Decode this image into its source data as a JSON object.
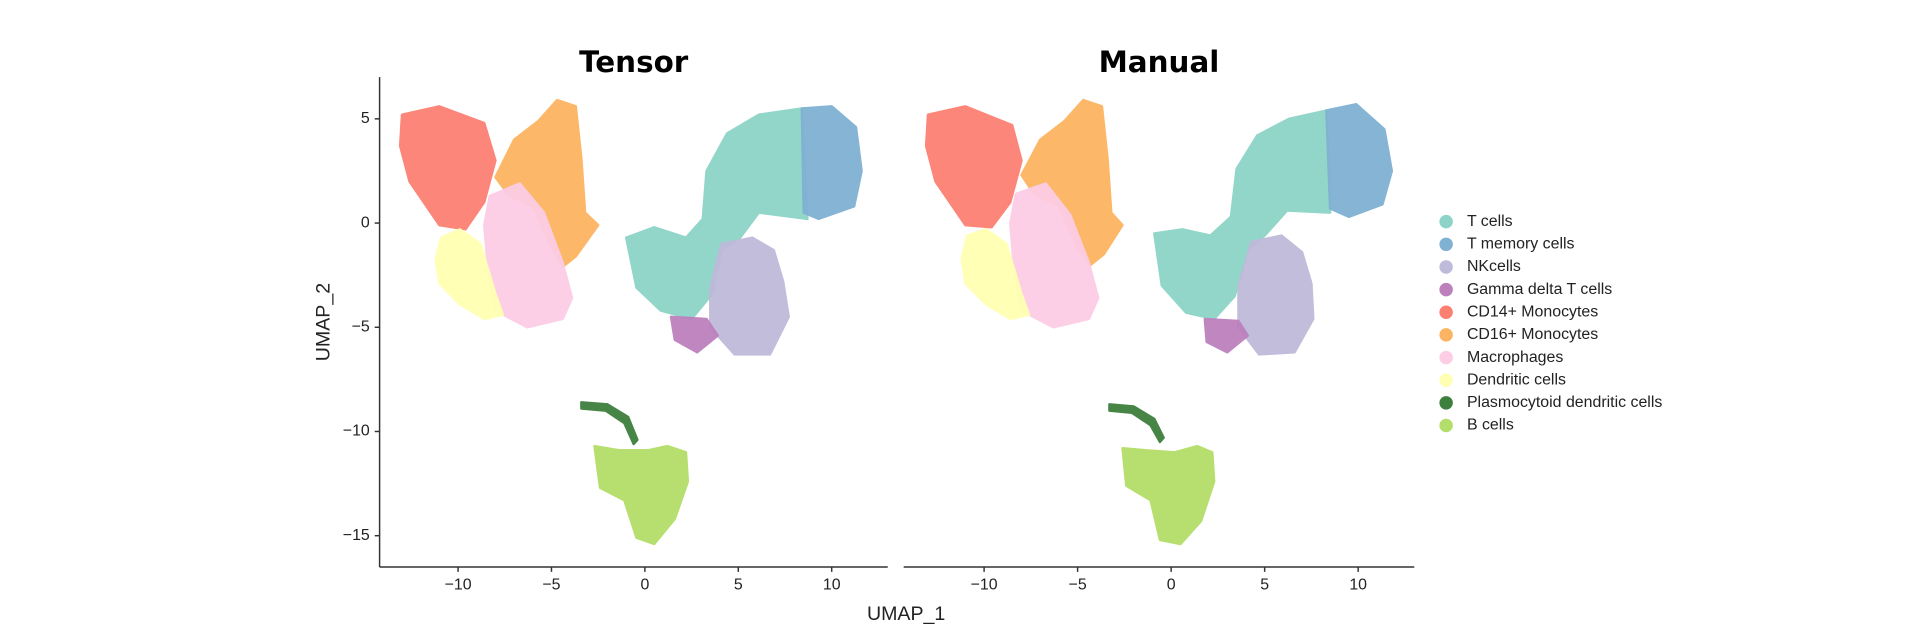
{
  "chart_data": [
    {
      "type": "scatter",
      "title": "Tensor",
      "xlabel": "UMAP_1",
      "ylabel": "UMAP_2",
      "xlim": [
        -14.2,
        13
      ],
      "ylim": [
        -16.5,
        7
      ],
      "xticks": [
        {
          "value": -10,
          "label": "−10"
        },
        {
          "value": -5,
          "label": "−5"
        },
        0,
        5,
        10
      ],
      "yticks": [
        5,
        0,
        {
          "value": -5,
          "label": "−5"
        },
        {
          "value": -10,
          "label": "−10"
        },
        {
          "value": -15,
          "label": "−15"
        }
      ],
      "series": [
        {
          "name": "T cells",
          "color": "#8dd3c7",
          "x": [
            -1.0,
            0.5,
            2.2,
            3.1,
            3.3,
            4.4,
            6.1,
            8.4,
            8.7,
            6.1,
            5.1,
            4.1,
            3.6,
            2.5,
            0.85,
            -0.45
          ],
          "y": [
            -0.7,
            -0.2,
            -0.7,
            0.2,
            2.5,
            4.3,
            5.2,
            5.5,
            0.2,
            0.5,
            -0.7,
            -1.3,
            -3.4,
            -4.6,
            -4.2,
            -3.1
          ]
        },
        {
          "name": "T memory cells",
          "color": "#80b1d3",
          "x": [
            8.4,
            10,
            11.3,
            11.6,
            11.2,
            9.3,
            8.5
          ],
          "y": [
            5.5,
            5.6,
            4.6,
            2.5,
            0.8,
            0.2,
            0.5
          ]
        },
        {
          "name": "NKcells",
          "color": "#bebada",
          "x": [
            4.1,
            5.75,
            6.9,
            7.4,
            7.7,
            6.7,
            4.8,
            3.5,
            3.5
          ],
          "y": [
            -1,
            -0.7,
            -1.3,
            -2.8,
            -4.5,
            -6.3,
            -6.3,
            -5,
            -3.1
          ]
        },
        {
          "name": "Gamma delta T cells",
          "color": "#bc80bd",
          "x": [
            1.4,
            3.3,
            3.9,
            2.8,
            1.6
          ],
          "y": [
            -4.5,
            -4.6,
            -5.4,
            -6.2,
            -5.6
          ]
        },
        {
          "name": "CD14+ Monocytes",
          "color": "#fb8072",
          "x": [
            -13,
            -11,
            -8.6,
            -8,
            -8.6,
            -9.6,
            -11,
            -12.6,
            -13.1
          ],
          "y": [
            5.2,
            5.6,
            4.8,
            3,
            1,
            -0.3,
            -0.1,
            2,
            3.7
          ]
        },
        {
          "name": "CD16+ Monocytes",
          "color": "#fdb462",
          "x": [
            -8,
            -7,
            -5.7,
            -4.7,
            -3.7,
            -3.4,
            -3.2,
            -2.5,
            -3.7,
            -4.4,
            -5.1,
            -6,
            -7.3
          ],
          "y": [
            2.2,
            4,
            4.9,
            5.9,
            5.6,
            3.1,
            0.5,
            -0.1,
            -1.6,
            -2.1,
            -1,
            0.8,
            1.35
          ]
        },
        {
          "name": "Macrophages",
          "color": "#fccde5",
          "x": [
            -8.3,
            -6.7,
            -5.4,
            -4.4,
            -3.9,
            -4.4,
            -6.3,
            -8,
            -8.4,
            -8.6
          ],
          "y": [
            1.3,
            1.9,
            0.5,
            -1.9,
            -3.6,
            -4.6,
            -5,
            -4.2,
            -2.2,
            -0.1
          ]
        },
        {
          "name": "Dendritic cells",
          "color": "#ffffb3",
          "x": [
            -10.9,
            -9.9,
            -8.8,
            -8,
            -7.6,
            -8.6,
            -9.9,
            -11,
            -11.2
          ],
          "y": [
            -0.7,
            -0.3,
            -1,
            -3.4,
            -4.4,
            -4.6,
            -3.9,
            -2.9,
            -1.7
          ]
        },
        {
          "name": "Plasmocytoid dendritic cells",
          "color": "#3d7f3d",
          "x": [
            -3.4,
            -2,
            -0.9,
            -0.4,
            -0.6,
            -1.1,
            -2.1,
            -3.4
          ],
          "y": [
            -8.6,
            -8.7,
            -9.3,
            -10.4,
            -10.6,
            -9.6,
            -9.0,
            -8.9
          ]
        },
        {
          "name": "B cells",
          "color": "#b3de69",
          "x": [
            -2.7,
            -1.4,
            0.2,
            1.2,
            2.2,
            2.3,
            1.6,
            0.5,
            -0.45,
            -1.1,
            -2.4
          ],
          "y": [
            -10.7,
            -10.9,
            -10.9,
            -10.7,
            -11.0,
            -12.4,
            -14.2,
            -15.4,
            -15.1,
            -13.3,
            -12.7
          ]
        }
      ]
    },
    {
      "type": "scatter",
      "title": "Manual",
      "xlim": [
        -14.3,
        13
      ],
      "ylim": [
        -16.5,
        7
      ],
      "xticks": [
        {
          "value": -10,
          "label": "−10"
        },
        {
          "value": -5,
          "label": "−5"
        },
        0,
        5,
        10
      ],
      "series": [
        {
          "name": "T cells",
          "color": "#8dd3c7",
          "x": [
            -0.9,
            0.6,
            2.1,
            3.2,
            3.5,
            4.6,
            6.3,
            8.3,
            8.5,
            6.2,
            5.0,
            4.1,
            3.4,
            2.3,
            0.8,
            -0.5
          ],
          "y": [
            -0.5,
            -0.3,
            -0.6,
            0.3,
            2.6,
            4.2,
            5.0,
            5.4,
            0.5,
            0.6,
            -0.6,
            -1.3,
            -3.5,
            -4.6,
            -4.3,
            -3.0
          ]
        },
        {
          "name": "T memory cells",
          "color": "#80b1d3",
          "x": [
            8.3,
            9.9,
            11.4,
            11.8,
            11.3,
            9.5,
            8.5
          ],
          "y": [
            5.4,
            5.7,
            4.5,
            2.5,
            0.9,
            0.3,
            0.7
          ]
        },
        {
          "name": "NKcells",
          "color": "#bebada",
          "x": [
            4.3,
            5.9,
            7.0,
            7.5,
            7.6,
            6.6,
            4.7,
            3.6,
            3.6
          ],
          "y": [
            -0.9,
            -0.6,
            -1.4,
            -2.9,
            -4.6,
            -6.2,
            -6.3,
            -5.0,
            -3.0
          ]
        },
        {
          "name": "Gamma delta T cells",
          "color": "#bc80bd",
          "x": [
            1.8,
            3.6,
            4.1,
            3.0,
            1.9
          ],
          "y": [
            -4.6,
            -4.7,
            -5.4,
            -6.2,
            -5.7
          ]
        },
        {
          "name": "CD14+ Monocytes",
          "color": "#fb8072",
          "x": [
            -13,
            -11,
            -8.5,
            -8,
            -8.6,
            -9.6,
            -11,
            -12.6,
            -13.1
          ],
          "y": [
            5.2,
            5.6,
            4.7,
            3,
            1,
            -0.2,
            -0.1,
            2,
            3.7
          ]
        },
        {
          "name": "CD16+ Monocytes",
          "color": "#fdb462",
          "x": [
            -8,
            -7,
            -5.7,
            -4.7,
            -3.7,
            -3.4,
            -3.2,
            -2.6,
            -3.6,
            -4.3,
            -5.1,
            -6,
            -7.3
          ],
          "y": [
            2.3,
            4,
            4.9,
            5.9,
            5.6,
            3.1,
            0.5,
            -0.1,
            -1.5,
            -2.0,
            -1,
            0.8,
            1.35
          ]
        },
        {
          "name": "Macrophages",
          "color": "#fccde5",
          "x": [
            -8.3,
            -6.7,
            -5.4,
            -4.4,
            -3.9,
            -4.4,
            -6.3,
            -8,
            -8.4,
            -8.6
          ],
          "y": [
            1.4,
            1.9,
            0.4,
            -1.9,
            -3.6,
            -4.6,
            -5,
            -4.2,
            -2.2,
            0
          ]
        },
        {
          "name": "Dendritic cells",
          "color": "#ffffb3",
          "x": [
            -10.9,
            -9.9,
            -8.8,
            -8,
            -7.6,
            -8.6,
            -9.9,
            -11,
            -11.2
          ],
          "y": [
            -0.6,
            -0.3,
            -1,
            -3.4,
            -4.4,
            -4.6,
            -3.9,
            -2.9,
            -1.7
          ]
        },
        {
          "name": "Plasmocytoid dendritic cells",
          "color": "#3d7f3d",
          "x": [
            -3.3,
            -2,
            -0.9,
            -0.4,
            -0.6,
            -1.1,
            -2.1,
            -3.3
          ],
          "y": [
            -8.7,
            -8.8,
            -9.4,
            -10.3,
            -10.5,
            -9.7,
            -9.1,
            -9.0
          ]
        },
        {
          "name": "B cells",
          "color": "#b3de69",
          "x": [
            -2.6,
            -1.4,
            0.2,
            1.4,
            2.2,
            2.3,
            1.6,
            0.5,
            -0.6,
            -1.1,
            -2.4
          ],
          "y": [
            -10.8,
            -10.9,
            -11.0,
            -10.7,
            -11.0,
            -12.4,
            -14.3,
            -15.4,
            -15.2,
            -13.3,
            -12.6
          ]
        }
      ]
    }
  ]
}
